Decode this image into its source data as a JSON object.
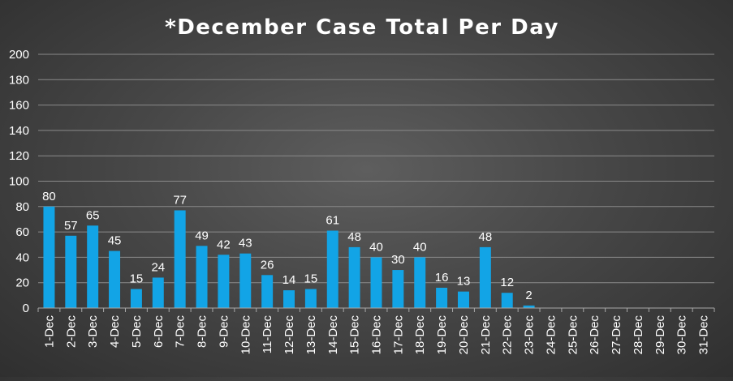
{
  "chart_data": {
    "type": "bar",
    "title": "*December Case Total Per Day",
    "xlabel": "",
    "ylabel": "",
    "ylim": [
      0,
      200
    ],
    "yticks": [
      0,
      20,
      40,
      60,
      80,
      100,
      120,
      140,
      160,
      180,
      200
    ],
    "grid": true,
    "legend": "none",
    "bar_color": "#12a4e6",
    "categories": [
      "1-Dec",
      "2-Dec",
      "3-Dec",
      "4-Dec",
      "5-Dec",
      "6-Dec",
      "7-Dec",
      "8-Dec",
      "9-Dec",
      "10-Dec",
      "11-Dec",
      "12-Dec",
      "13-Dec",
      "14-Dec",
      "15-Dec",
      "16-Dec",
      "17-Dec",
      "18-Dec",
      "19-Dec",
      "20-Dec",
      "21-Dec",
      "22-Dec",
      "23-Dec",
      "24-Dec",
      "25-Dec",
      "26-Dec",
      "27-Dec",
      "28-Dec",
      "29-Dec",
      "30-Dec",
      "31-Dec"
    ],
    "values": [
      80,
      57,
      65,
      45,
      15,
      24,
      77,
      49,
      42,
      43,
      26,
      14,
      15,
      61,
      48,
      40,
      30,
      40,
      16,
      13,
      48,
      12,
      2,
      null,
      null,
      null,
      null,
      null,
      null,
      null,
      null
    ]
  }
}
